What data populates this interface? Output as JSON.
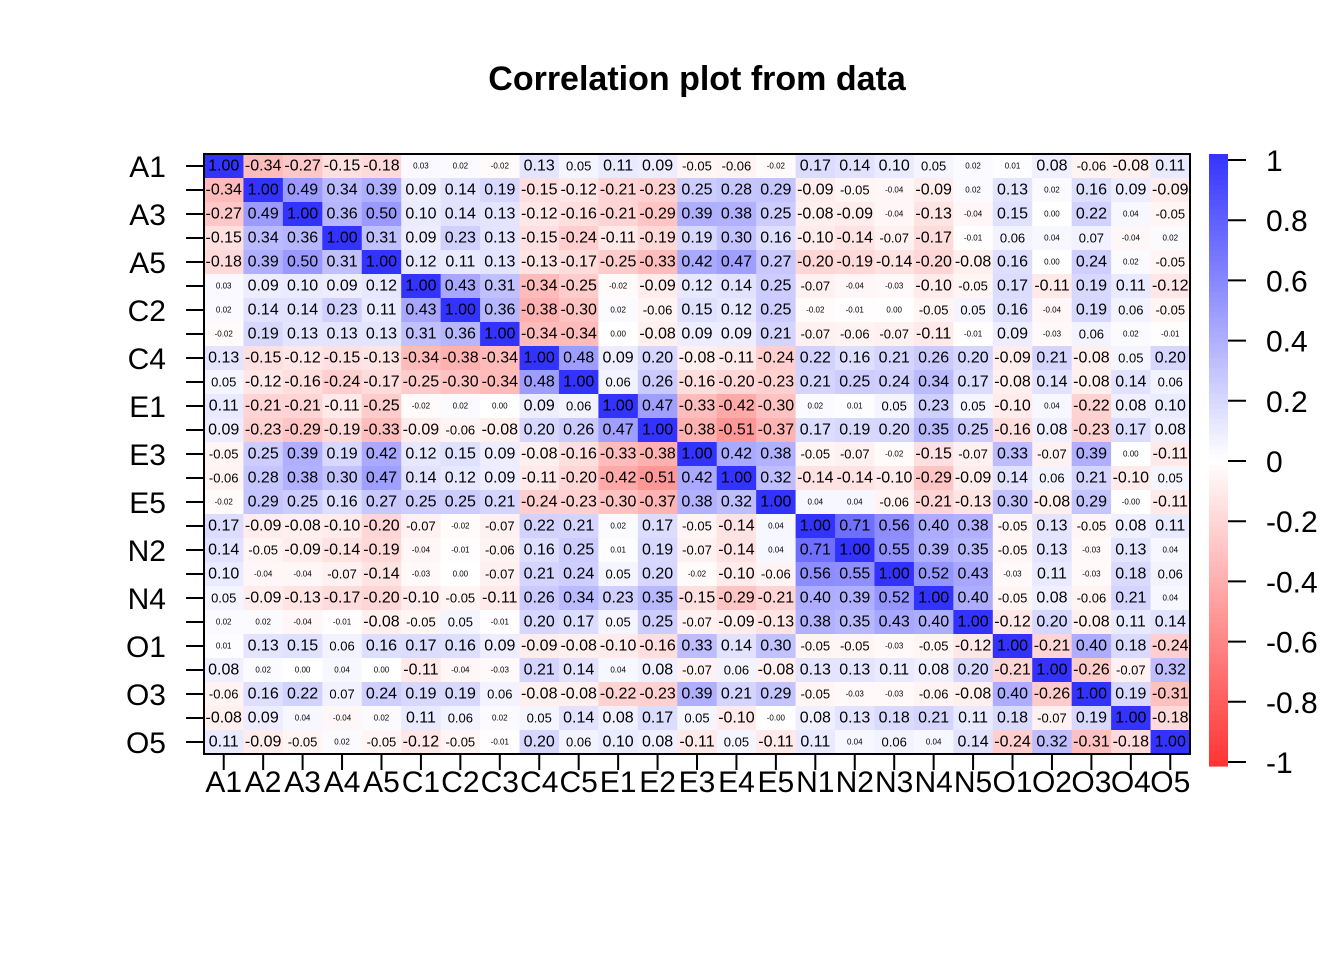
{
  "chart_data": {
    "type": "heatmap",
    "title": "Correlation plot from data",
    "x_labels": [
      "A1",
      "A2",
      "A3",
      "A4",
      "A5",
      "C1",
      "C2",
      "C3",
      "C4",
      "C5",
      "E1",
      "E2",
      "E3",
      "E4",
      "E5",
      "N1",
      "N2",
      "N3",
      "N4",
      "N5",
      "O1",
      "O2",
      "O3",
      "O4",
      "O5"
    ],
    "y_labels": [
      "A1",
      "",
      "A3",
      "",
      "A5",
      "",
      "C2",
      "",
      "C4",
      "",
      "E1",
      "",
      "E3",
      "",
      "E5",
      "",
      "N2",
      "",
      "N4",
      "",
      "O1",
      "",
      "O3",
      "",
      "O5"
    ],
    "colorbar": {
      "ticks": [
        "1",
        "0.8",
        "0.6",
        "0.4",
        "0.2",
        "0",
        "-0.2",
        "-0.4",
        "-0.6",
        "-0.8",
        "-1"
      ],
      "range": [
        -1,
        1
      ],
      "colors": {
        "low": "#FF3333",
        "mid": "#FFFFFF",
        "high": "#3333FF"
      }
    },
    "matrix": [
      [
        1.0,
        -0.34,
        -0.27,
        -0.15,
        -0.18,
        0.03,
        0.02,
        -0.02,
        0.13,
        0.05,
        0.11,
        0.09,
        -0.05,
        -0.06,
        -0.02,
        0.17,
        0.14,
        0.1,
        0.05,
        0.02,
        0.01,
        0.08,
        -0.06,
        -0.08,
        0.11
      ],
      [
        -0.34,
        1.0,
        0.49,
        0.34,
        0.39,
        0.09,
        0.14,
        0.19,
        -0.15,
        -0.12,
        -0.21,
        -0.23,
        0.25,
        0.28,
        0.29,
        -0.09,
        -0.05,
        -0.04,
        -0.09,
        0.02,
        0.13,
        0.02,
        0.16,
        0.09,
        -0.09
      ],
      [
        -0.27,
        0.49,
        1.0,
        0.36,
        0.5,
        0.1,
        0.14,
        0.13,
        -0.12,
        -0.16,
        -0.21,
        -0.29,
        0.39,
        0.38,
        0.25,
        -0.08,
        -0.09,
        -0.04,
        -0.13,
        -0.04,
        0.15,
        0.0,
        0.22,
        0.04,
        -0.05
      ],
      [
        -0.15,
        0.34,
        0.36,
        1.0,
        0.31,
        0.09,
        0.23,
        0.13,
        -0.15,
        -0.24,
        -0.11,
        -0.19,
        0.19,
        0.3,
        0.16,
        -0.1,
        -0.14,
        -0.07,
        -0.17,
        -0.01,
        0.06,
        0.04,
        0.07,
        -0.04,
        0.02
      ],
      [
        -0.18,
        0.39,
        0.5,
        0.31,
        1.0,
        0.12,
        0.11,
        0.13,
        -0.13,
        -0.17,
        -0.25,
        -0.33,
        0.42,
        0.47,
        0.27,
        -0.2,
        -0.19,
        -0.14,
        -0.2,
        -0.08,
        0.16,
        0.0,
        0.24,
        0.02,
        -0.05
      ],
      [
        0.03,
        0.09,
        0.1,
        0.09,
        0.12,
        1.0,
        0.43,
        0.31,
        -0.34,
        -0.25,
        -0.02,
        -0.09,
        0.12,
        0.14,
        0.25,
        -0.07,
        -0.04,
        -0.03,
        -0.1,
        -0.05,
        0.17,
        -0.11,
        0.19,
        0.11,
        -0.12
      ],
      [
        0.02,
        0.14,
        0.14,
        0.23,
        0.11,
        0.43,
        1.0,
        0.36,
        -0.38,
        -0.3,
        0.02,
        -0.06,
        0.15,
        0.12,
        0.25,
        -0.02,
        -0.01,
        0.0,
        -0.05,
        0.05,
        0.16,
        -0.04,
        0.19,
        0.06,
        -0.05
      ],
      [
        -0.02,
        0.19,
        0.13,
        0.13,
        0.13,
        0.31,
        0.36,
        1.0,
        -0.34,
        -0.34,
        0.0,
        -0.08,
        0.09,
        0.09,
        0.21,
        -0.07,
        -0.06,
        -0.07,
        -0.11,
        -0.01,
        0.09,
        -0.03,
        0.06,
        0.02,
        -0.01
      ],
      [
        0.13,
        -0.15,
        -0.12,
        -0.15,
        -0.13,
        -0.34,
        -0.38,
        -0.34,
        1.0,
        0.48,
        0.09,
        0.2,
        -0.08,
        -0.11,
        -0.24,
        0.22,
        0.16,
        0.21,
        0.26,
        0.2,
        -0.09,
        0.21,
        -0.08,
        0.05,
        0.2
      ],
      [
        0.05,
        -0.12,
        -0.16,
        -0.24,
        -0.17,
        -0.25,
        -0.3,
        -0.34,
        0.48,
        1.0,
        0.06,
        0.26,
        -0.16,
        -0.2,
        -0.23,
        0.21,
        0.25,
        0.24,
        0.34,
        0.17,
        -0.08,
        0.14,
        -0.08,
        0.14,
        0.06
      ],
      [
        0.11,
        -0.21,
        -0.21,
        -0.11,
        -0.25,
        -0.02,
        0.02,
        0.0,
        0.09,
        0.06,
        1.0,
        0.47,
        -0.33,
        -0.42,
        -0.3,
        0.02,
        0.01,
        0.05,
        0.23,
        0.05,
        -0.1,
        0.04,
        -0.22,
        0.08,
        0.1
      ],
      [
        0.09,
        -0.23,
        -0.29,
        -0.19,
        -0.33,
        -0.09,
        -0.06,
        -0.08,
        0.2,
        0.26,
        0.47,
        1.0,
        -0.38,
        -0.51,
        -0.37,
        0.17,
        0.19,
        0.2,
        0.35,
        0.25,
        -0.16,
        0.08,
        -0.23,
        0.17,
        0.08
      ],
      [
        -0.05,
        0.25,
        0.39,
        0.19,
        0.42,
        0.12,
        0.15,
        0.09,
        -0.08,
        -0.16,
        -0.33,
        -0.38,
        1.0,
        0.42,
        0.38,
        -0.05,
        -0.07,
        -0.02,
        -0.15,
        -0.07,
        0.33,
        -0.07,
        0.39,
        0.0,
        -0.11
      ],
      [
        -0.06,
        0.28,
        0.38,
        0.3,
        0.47,
        0.14,
        0.12,
        0.09,
        -0.11,
        -0.2,
        -0.42,
        -0.51,
        0.42,
        1.0,
        0.32,
        -0.14,
        -0.14,
        -0.1,
        -0.29,
        -0.09,
        0.14,
        0.06,
        0.21,
        -0.1,
        0.05
      ],
      [
        -0.02,
        0.29,
        0.25,
        0.16,
        0.27,
        0.25,
        0.25,
        0.21,
        -0.24,
        -0.23,
        -0.3,
        -0.37,
        0.38,
        0.32,
        1.0,
        0.04,
        0.04,
        -0.06,
        -0.21,
        -0.13,
        0.3,
        -0.08,
        0.29,
        -0.0,
        -0.11
      ],
      [
        0.17,
        -0.09,
        -0.08,
        -0.1,
        -0.2,
        -0.07,
        -0.02,
        -0.07,
        0.22,
        0.21,
        0.02,
        0.17,
        -0.05,
        -0.14,
        0.04,
        1.0,
        0.71,
        0.56,
        0.4,
        0.38,
        -0.05,
        0.13,
        -0.05,
        0.08,
        0.11
      ],
      [
        0.14,
        -0.05,
        -0.09,
        -0.14,
        -0.19,
        -0.04,
        -0.01,
        -0.06,
        0.16,
        0.25,
        0.01,
        0.19,
        -0.07,
        -0.14,
        0.04,
        0.71,
        1.0,
        0.55,
        0.39,
        0.35,
        -0.05,
        0.13,
        -0.03,
        0.13,
        0.04
      ],
      [
        0.1,
        -0.04,
        -0.04,
        -0.07,
        -0.14,
        -0.03,
        0.0,
        -0.07,
        0.21,
        0.24,
        0.05,
        0.2,
        -0.02,
        -0.1,
        -0.06,
        0.56,
        0.55,
        1.0,
        0.52,
        0.43,
        -0.03,
        0.11,
        -0.03,
        0.18,
        0.06
      ],
      [
        0.05,
        -0.09,
        -0.13,
        -0.17,
        -0.2,
        -0.1,
        -0.05,
        -0.11,
        0.26,
        0.34,
        0.23,
        0.35,
        -0.15,
        -0.29,
        -0.21,
        0.4,
        0.39,
        0.52,
        1.0,
        0.4,
        -0.05,
        0.08,
        -0.06,
        0.21,
        0.04
      ],
      [
        0.02,
        0.02,
        -0.04,
        -0.01,
        -0.08,
        -0.05,
        0.05,
        -0.01,
        0.2,
        0.17,
        0.05,
        0.25,
        -0.07,
        -0.09,
        -0.13,
        0.38,
        0.35,
        0.43,
        0.4,
        1.0,
        -0.12,
        0.2,
        -0.08,
        0.11,
        0.14
      ],
      [
        0.01,
        0.13,
        0.15,
        0.06,
        0.16,
        0.17,
        0.16,
        0.09,
        -0.09,
        -0.08,
        -0.1,
        -0.16,
        0.33,
        0.14,
        0.3,
        -0.05,
        -0.05,
        -0.03,
        -0.05,
        -0.12,
        1.0,
        -0.21,
        0.4,
        0.18,
        -0.24
      ],
      [
        0.08,
        0.02,
        0.0,
        0.04,
        0.0,
        -0.11,
        -0.04,
        -0.03,
        0.21,
        0.14,
        0.04,
        0.08,
        -0.07,
        0.06,
        -0.08,
        0.13,
        0.13,
        0.11,
        0.08,
        0.2,
        -0.21,
        1.0,
        -0.26,
        -0.07,
        0.32
      ],
      [
        -0.06,
        0.16,
        0.22,
        0.07,
        0.24,
        0.19,
        0.19,
        0.06,
        -0.08,
        -0.08,
        -0.22,
        -0.23,
        0.39,
        0.21,
        0.29,
        -0.05,
        -0.03,
        -0.03,
        -0.06,
        -0.08,
        0.4,
        -0.26,
        1.0,
        0.19,
        -0.31
      ],
      [
        -0.08,
        0.09,
        0.04,
        -0.04,
        0.02,
        0.11,
        0.06,
        0.02,
        0.05,
        0.14,
        0.08,
        0.17,
        0.05,
        -0.1,
        -0.0,
        0.08,
        0.13,
        0.18,
        0.21,
        0.11,
        0.18,
        -0.07,
        0.19,
        1.0,
        -0.18
      ],
      [
        0.11,
        -0.09,
        -0.05,
        0.02,
        -0.05,
        -0.12,
        -0.05,
        -0.01,
        0.2,
        0.06,
        0.1,
        0.08,
        -0.11,
        0.05,
        -0.11,
        0.11,
        0.04,
        0.06,
        0.04,
        0.14,
        -0.24,
        0.32,
        -0.31,
        -0.18,
        1.0
      ]
    ]
  }
}
